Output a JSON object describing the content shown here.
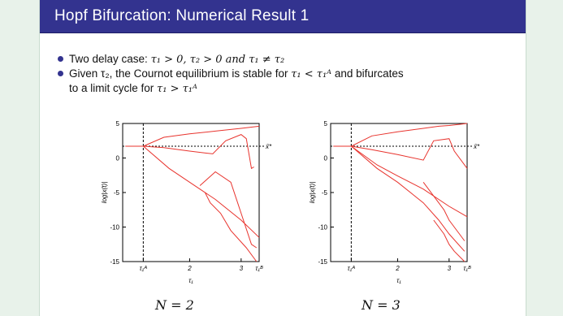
{
  "slide": {
    "title": "Hopf Bifurcation: Numerical Result 1",
    "bullets": [
      {
        "text_a": "Two delay case: ",
        "math_a": "τ₁ > 0,  τ₂ > 0 and τ₁ ≠ τ₂"
      },
      {
        "text_a": "Given τ₂, the Cournot equilibrium is stable for ",
        "math_a": "τ₁ < τ₁ᴬ",
        "text_b": " and bifurcates",
        "line2_a": "to a limit cycle for ",
        "math_b": "τ₁ > τ₁ᴬ"
      }
    ]
  },
  "colors": {
    "title_bg": "#33338f",
    "curve": "#e8342e",
    "frame": "#000000"
  },
  "chart_data": [
    {
      "type": "line",
      "title": "",
      "caption": "N = 2",
      "ylabel": "log|x(t)|",
      "xlabel": "τ₁",
      "xticks": [
        "τ₁ᴬ",
        "2",
        "3",
        "τ₁ᴮ"
      ],
      "xtick_values": [
        1.1,
        2.0,
        3.0,
        3.35
      ],
      "yticks": [
        "5",
        "0",
        "-5",
        "-10",
        "-15"
      ],
      "ytick_values": [
        5,
        0,
        -5,
        -10,
        -15
      ],
      "xlim": [
        0.7,
        3.35
      ],
      "ylim": [
        -15,
        5
      ],
      "equilibrium_label": "x̄*",
      "equilibrium_value": 1.7,
      "threshold_label": "τ₁ᴬ",
      "threshold_value": 1.1,
      "series": [
        {
          "x": [
            0.75,
            0.9,
            1.1
          ],
          "y": [
            1.7,
            1.7,
            1.7
          ]
        },
        {
          "x": [
            1.1,
            1.5,
            2.0,
            2.5,
            3.0,
            3.35
          ],
          "y": [
            1.7,
            3.0,
            3.5,
            3.9,
            4.3,
            4.6
          ]
        },
        {
          "x": [
            1.1,
            1.5,
            2.0,
            2.45,
            2.7,
            3.0,
            3.1,
            3.2,
            3.25
          ],
          "y": [
            1.7,
            1.5,
            1.0,
            0.6,
            2.5,
            3.4,
            2.8,
            -1.5,
            -1.3
          ]
        },
        {
          "x": [
            1.1,
            1.6,
            2.0,
            2.5,
            3.0,
            3.35
          ],
          "y": [
            1.7,
            -1.5,
            -3.5,
            -6.0,
            -9.0,
            -11.5
          ]
        },
        {
          "x": [
            2.2,
            2.5,
            2.8,
            3.0,
            3.2,
            3.3
          ],
          "y": [
            -4.0,
            -2.0,
            -3.5,
            -8.0,
            -12.5,
            -13.0
          ]
        },
        {
          "x": [
            2.3,
            2.4,
            2.6,
            2.8,
            3.1,
            3.3
          ],
          "y": [
            -5.0,
            -6.5,
            -8.0,
            -10.5,
            -13.0,
            -15.0
          ]
        }
      ]
    },
    {
      "type": "line",
      "title": "",
      "caption": "N = 3",
      "ylabel": "log|x(t)|",
      "xlabel": "τ₁",
      "xticks": [
        "τ₁ᴬ",
        "2",
        "3",
        "τ₁ᴮ"
      ],
      "xtick_values": [
        1.1,
        2.0,
        3.0,
        3.35
      ],
      "yticks": [
        "5",
        "0",
        "-5",
        "-10",
        "-15"
      ],
      "ytick_values": [
        5,
        0,
        -5,
        -10,
        -15
      ],
      "xlim": [
        0.7,
        3.35
      ],
      "ylim": [
        -15,
        5
      ],
      "equilibrium_label": "x̄*",
      "equilibrium_value": 1.7,
      "threshold_label": "τ₁ᴬ",
      "threshold_value": 1.1,
      "series": [
        {
          "x": [
            0.75,
            0.9,
            1.1
          ],
          "y": [
            1.7,
            1.7,
            1.7
          ]
        },
        {
          "x": [
            1.1,
            1.5,
            2.0,
            2.5,
            2.8,
            3.0,
            3.35
          ],
          "y": [
            1.7,
            3.2,
            3.8,
            4.3,
            4.6,
            4.7,
            5.0
          ]
        },
        {
          "x": [
            1.1,
            1.5,
            2.0,
            2.5,
            2.7,
            3.0,
            3.1,
            3.35
          ],
          "y": [
            1.7,
            1.2,
            0.5,
            -0.3,
            2.5,
            2.8,
            1.0,
            -1.5
          ]
        },
        {
          "x": [
            1.1,
            1.6,
            2.0,
            2.5,
            3.0,
            3.35
          ],
          "y": [
            1.7,
            -1.0,
            -2.6,
            -4.5,
            -7.0,
            -8.5
          ]
        },
        {
          "x": [
            1.1,
            1.6,
            2.0,
            2.5,
            2.8,
            3.0,
            3.3
          ],
          "y": [
            1.7,
            -1.5,
            -3.5,
            -6.5,
            -9.0,
            -11.0,
            -13.5
          ]
        },
        {
          "x": [
            2.7,
            2.9,
            3.0,
            3.1,
            3.3
          ],
          "y": [
            -9.0,
            -11.0,
            -12.5,
            -13.5,
            -15.0
          ]
        },
        {
          "x": [
            2.5,
            2.7,
            2.9,
            3.0,
            3.2,
            3.3
          ],
          "y": [
            -3.5,
            -5.5,
            -7.5,
            -9.0,
            -11.0,
            -12.0
          ]
        }
      ]
    }
  ]
}
